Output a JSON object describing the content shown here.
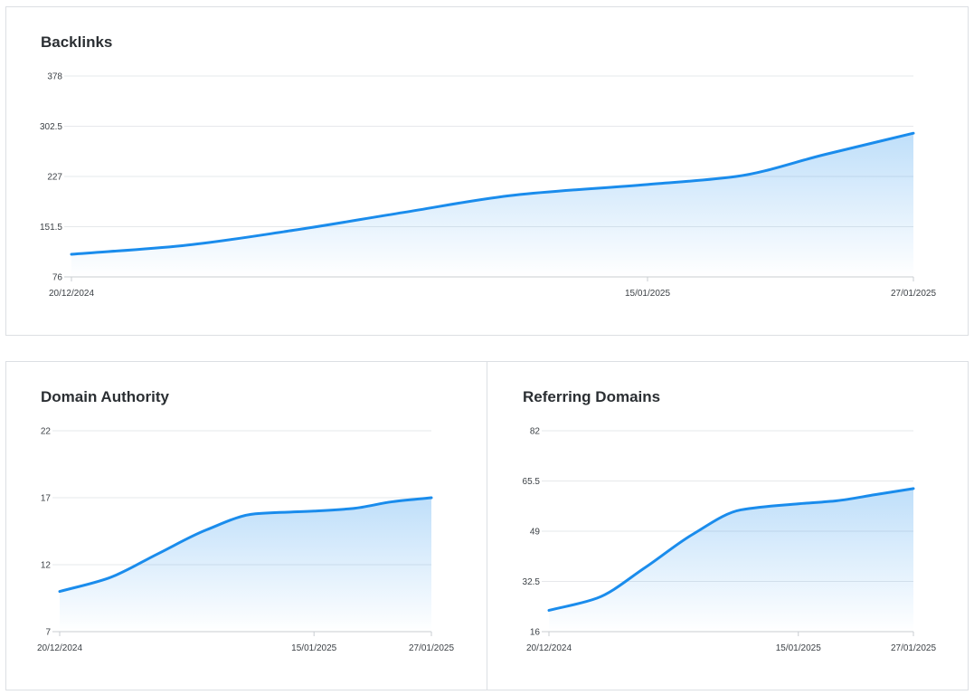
{
  "chart_data": [
    {
      "type": "area",
      "title": "Backlinks",
      "xlabel": "",
      "ylabel": "",
      "x_ticks": [
        "20/12/2024",
        "15/01/2025",
        "27/01/2025"
      ],
      "y_ticks": [
        "378",
        "302.5",
        "227",
        "151.5",
        "76"
      ],
      "ylim": [
        76,
        378
      ],
      "grid": true,
      "color": "#1a8cec",
      "x": [
        "20/12/2024",
        "25/12/2024",
        "30/12/2024",
        "04/01/2025",
        "09/01/2025",
        "15/01/2025",
        "19/01/2025",
        "23/01/2025",
        "27/01/2025"
      ],
      "values": [
        110,
        123,
        146,
        173,
        199,
        215,
        227,
        260,
        292
      ]
    },
    {
      "type": "area",
      "title": "Domain Authority",
      "xlabel": "",
      "ylabel": "",
      "x_ticks": [
        "20/12/2024",
        "15/01/2025",
        "27/01/2025"
      ],
      "y_ticks": [
        "22",
        "17",
        "12",
        "7"
      ],
      "ylim": [
        7,
        22
      ],
      "grid": true,
      "color": "#1a8cec",
      "x": [
        "20/12/2024",
        "25/12/2024",
        "30/12/2024",
        "04/01/2025",
        "09/01/2025",
        "15/01/2025",
        "19/01/2025",
        "23/01/2025",
        "27/01/2025"
      ],
      "values": [
        10,
        11,
        12.8,
        14.6,
        15.8,
        16,
        16.2,
        16.7,
        17
      ]
    },
    {
      "type": "area",
      "title": "Referring Domains",
      "xlabel": "",
      "ylabel": "",
      "x_ticks": [
        "20/12/2024",
        "15/01/2025",
        "27/01/2025"
      ],
      "y_ticks": [
        "82",
        "65.5",
        "49",
        "32.5",
        "16"
      ],
      "ylim": [
        16,
        82
      ],
      "grid": true,
      "color": "#1a8cec",
      "x": [
        "20/12/2024",
        "25/12/2024",
        "30/12/2024",
        "04/01/2025",
        "09/01/2025",
        "15/01/2025",
        "19/01/2025",
        "23/01/2025",
        "27/01/2025"
      ],
      "values": [
        23,
        27,
        37,
        48,
        56,
        58,
        59,
        61,
        63
      ]
    }
  ]
}
